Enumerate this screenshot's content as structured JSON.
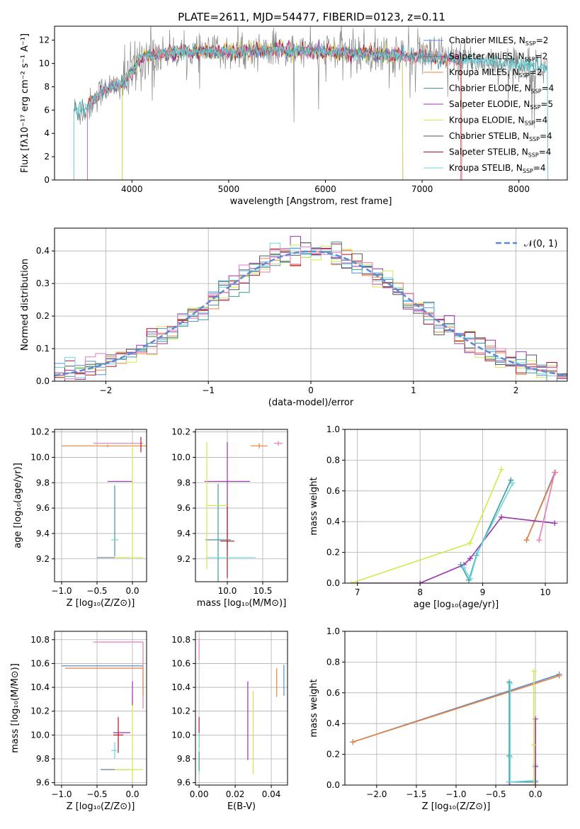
{
  "title": "PLATE=2611, MJD=54477, FIBERID=0123, z=0.11",
  "colors": {
    "Chabrier MILES": "#5b8bd6",
    "Salpeter MILES": "#6b7b8c",
    "Kroupa MILES": "#e8843c",
    "Chabrier ELODIE": "#3d9a9a",
    "Salpeter ELODIE": "#9b30b0",
    "Kroupa ELODIE": "#d4e84a",
    "Chabrier STELIB": "#555555",
    "Salpeter STELIB": "#b0151f",
    "Kroupa STELIB": "#6fd6e0",
    "normal": "#5b8bd6",
    "pink": "#e87ab8"
  },
  "legend_spectrum": [
    {
      "label": "Chabrier MILES, N",
      "sub": "SSP",
      "val": "=2",
      "color": "#5b8bd6"
    },
    {
      "label": "Salpeter MILES, N",
      "sub": "SSP",
      "val": "=2",
      "color": "#6b7b8c"
    },
    {
      "label": "Kroupa MILES, N",
      "sub": "SSP",
      "val": "=2",
      "color": "#e8843c"
    },
    {
      "label": "Chabrier ELODIE, N",
      "sub": "SSP",
      "val": "=4",
      "color": "#3d9a9a"
    },
    {
      "label": "Salpeter ELODIE, N",
      "sub": "SSP",
      "val": "=5",
      "color": "#9b30b0"
    },
    {
      "label": "Kroupa ELODIE, N",
      "sub": "SSP",
      "val": "=4",
      "color": "#d4e84a"
    },
    {
      "label": "Chabrier STELIB, N",
      "sub": "SSP",
      "val": "=4",
      "color": "#555555"
    },
    {
      "label": "Salpeter STELIB, N",
      "sub": "SSP",
      "val": "=4",
      "color": "#b0151f"
    },
    {
      "label": "Kroupa STELIB, N",
      "sub": "SSP",
      "val": "=4",
      "color": "#6fd6e0"
    }
  ],
  "chart_data": [
    {
      "type": "line",
      "id": "spectrum",
      "xlabel": "wavelength [Angstrom, rest frame]",
      "ylabel": "Flux [fλ10⁻¹⁷ erg cm⁻² s⁻¹ A⁻¹]",
      "xlim": [
        3200,
        8500
      ],
      "ylim": [
        0,
        13.2
      ],
      "xticks": [
        4000,
        5000,
        6000,
        7000,
        8000
      ],
      "yticks": [
        0,
        2,
        4,
        6,
        8,
        10,
        12
      ],
      "continuum": {
        "x": [
          3400,
          3500,
          3600,
          3700,
          3800,
          3900,
          4000,
          4100,
          4300,
          4500,
          5000,
          5500,
          6000,
          6500,
          7000,
          7500,
          8000,
          8300
        ],
        "y": [
          6.0,
          5.8,
          6.8,
          7.8,
          8.0,
          8.2,
          9.2,
          10.6,
          10.8,
          11.0,
          11.0,
          11.2,
          11.0,
          10.8,
          10.6,
          10.3,
          9.9,
          9.6
        ]
      },
      "data_range": [
        3400,
        8300
      ],
      "model_range_miles": [
        3540,
        7410
      ],
      "model_range_elodie": [
        3900,
        6800
      ]
    },
    {
      "type": "line",
      "id": "residual-hist",
      "xlabel": "(data-model)/error",
      "ylabel": "Normed distribution",
      "xlim": [
        -2.5,
        2.5
      ],
      "ylim": [
        0,
        0.47
      ],
      "xticks": [
        -2,
        -1,
        0,
        1,
        2
      ],
      "yticks": [
        0.0,
        0.1,
        0.2,
        0.3,
        0.4
      ],
      "legend": "𝒩(0, 1)",
      "bin_width": 0.1
    },
    {
      "type": "scatter",
      "id": "age-vs-Z",
      "xlabel": "Z [log₁₀(Z/Z⊙)]",
      "ylabel": "age  [log₁₀(age/yr)]",
      "xlim": [
        -1.1,
        0.2
      ],
      "ylim": [
        9.02,
        10.22
      ],
      "xticks": [
        -1.0,
        -0.5,
        0.0
      ],
      "yticks": [
        9.2,
        9.4,
        9.6,
        9.8,
        10.0,
        10.2
      ],
      "points": [
        {
          "x": -0.35,
          "xerr": [
            0.65,
            0.55
          ],
          "y": 10.09,
          "yerr": [
            0.01,
            0.01
          ],
          "color": "#e8843c"
        },
        {
          "x": -0.2,
          "xerr": [
            0.35,
            0.35
          ],
          "y": 10.11,
          "yerr": [
            0,
            0
          ],
          "color": "#e87ab8"
        },
        {
          "x": 0.12,
          "xerr": [
            0,
            0
          ],
          "y": 10.1,
          "yerr": [
            0.06,
            0.06
          ],
          "color": "#b0151f"
        },
        {
          "x": -0.1,
          "xerr": [
            0.25,
            0.1
          ],
          "y": 9.81,
          "yerr": [
            0,
            0
          ],
          "color": "#9b30b0"
        },
        {
          "x": -0.25,
          "xerr": [
            0,
            0
          ],
          "y": 9.5,
          "yerr": [
            0.28,
            0.28
          ],
          "color": "#3d9a9a"
        },
        {
          "x": -0.25,
          "xerr": [
            0.05,
            0.05
          ],
          "y": 9.35,
          "yerr": [
            0,
            0
          ],
          "color": "#6fd6e0"
        },
        {
          "x": -0.25,
          "xerr": [
            0.25,
            0.2
          ],
          "y": 9.21,
          "yerr": [
            0,
            0
          ],
          "color": "#6b7b8c"
        },
        {
          "x": 0.0,
          "xerr": [
            0.25,
            0.15
          ],
          "y": 9.21,
          "yerr": [
            0,
            0
          ],
          "color": "#d4e84a"
        },
        {
          "x": 0.0,
          "xerr": [
            0,
            0
          ],
          "y": 9.65,
          "yerr": [
            0.45,
            0.45
          ],
          "color": "#d4e84a"
        }
      ]
    },
    {
      "type": "scatter",
      "id": "age-vs-mass",
      "xlabel": "mass [log₁₀(M/M⊙)]",
      "ylabel": "",
      "xlim": [
        9.55,
        10.85
      ],
      "ylim": [
        9.02,
        10.22
      ],
      "xticks": [
        10.0,
        10.5
      ],
      "yticks": [
        9.2,
        9.4,
        9.6,
        9.8,
        10.0,
        10.2
      ],
      "points": [
        {
          "x": 10.45,
          "xerr": [
            0.12,
            0.12
          ],
          "y": 10.09,
          "yerr": [
            0.02,
            0.02
          ],
          "color": "#e8843c"
        },
        {
          "x": 10.72,
          "xerr": [
            0.06,
            0.06
          ],
          "y": 10.11,
          "yerr": [
            0.02,
            0.02
          ],
          "color": "#e87ab8"
        },
        {
          "x": 10.0,
          "xerr": [
            0,
            0
          ],
          "y": 9.7,
          "yerr": [
            0.42,
            0.42
          ],
          "color": "#9b30b0"
        },
        {
          "x": 10.0,
          "xerr": [
            0.32,
            0.32
          ],
          "y": 9.81,
          "yerr": [
            0,
            0
          ],
          "color": "#9b30b0"
        },
        {
          "x": 10.0,
          "xerr": [
            0.1,
            0.1
          ],
          "y": 9.34,
          "yerr": [
            0.29,
            0.29
          ],
          "color": "#b0151f"
        },
        {
          "x": 9.87,
          "xerr": [
            0.18,
            0.18
          ],
          "y": 9.35,
          "yerr": [
            0.44,
            0.44
          ],
          "color": "#3d9a9a"
        },
        {
          "x": 9.75,
          "xerr": [
            0.05,
            0.65
          ],
          "y": 9.21,
          "yerr": [
            0,
            0
          ],
          "color": "#6fd6e0"
        },
        {
          "x": 9.71,
          "xerr": [
            0,
            0.3
          ],
          "y": 9.62,
          "yerr": [
            0.5,
            0.5
          ],
          "color": "#d4e84a"
        }
      ]
    },
    {
      "type": "line",
      "id": "weight-vs-age",
      "xlabel": "age  [log₁₀(age/yr)]",
      "ylabel": "mass weight",
      "xlim": [
        6.8,
        10.35
      ],
      "ylim": [
        0,
        1.0
      ],
      "xticks": [
        7,
        8,
        9,
        10
      ],
      "yticks": [
        0.0,
        0.2,
        0.4,
        0.6,
        0.8,
        1.0
      ],
      "series": [
        {
          "color": "#5b8bd6",
          "x": [
            9.7,
            10.15
          ],
          "y": [
            0.28,
            0.72
          ]
        },
        {
          "color": "#e8843c",
          "x": [
            9.7,
            10.16
          ],
          "y": [
            0.28,
            0.72
          ]
        },
        {
          "color": "#9b30b0",
          "x": [
            7.0,
            8.0,
            8.7,
            8.8,
            9.3,
            10.15
          ],
          "y": [
            0.0,
            0.0,
            0.12,
            0.16,
            0.43,
            0.39
          ]
        },
        {
          "color": "#d4e84a",
          "x": [
            6.9,
            8.8,
            9.3
          ],
          "y": [
            0.0,
            0.26,
            0.74
          ]
        },
        {
          "color": "#3d9a9a",
          "x": [
            8.65,
            8.78,
            8.9,
            9.45
          ],
          "y": [
            0.12,
            0.02,
            0.18,
            0.67
          ]
        },
        {
          "color": "#6fd6e0",
          "x": [
            8.7,
            8.8,
            8.92,
            9.48
          ],
          "y": [
            0.1,
            0.03,
            0.2,
            0.65
          ]
        },
        {
          "color": "#e87ab8",
          "x": [
            9.9,
            10.15
          ],
          "y": [
            0.28,
            0.72
          ]
        }
      ]
    },
    {
      "type": "scatter",
      "id": "mass-vs-Z",
      "xlabel": "Z [log₁₀(Z/Z⊙)]",
      "ylabel": "mass [log₁₀(M/M⊙)]",
      "xlim": [
        -1.1,
        0.2
      ],
      "ylim": [
        9.58,
        10.87
      ],
      "xticks": [
        -1.0,
        -0.5,
        0.0
      ],
      "yticks": [
        9.6,
        9.8,
        10.0,
        10.2,
        10.4,
        10.6,
        10.8
      ],
      "points": [
        {
          "x": -0.2,
          "xerr": [
            0.35,
            0.35
          ],
          "y": 10.78,
          "yerr": [
            0,
            0
          ],
          "color": "#e87ab8"
        },
        {
          "x": -0.4,
          "xerr": [
            0.6,
            0.55
          ],
          "y": 10.58,
          "yerr": [
            0,
            0
          ],
          "color": "#5b8bd6"
        },
        {
          "x": -0.4,
          "xerr": [
            0.55,
            0.55
          ],
          "y": 10.56,
          "yerr": [
            0,
            0
          ],
          "color": "#e8843c"
        },
        {
          "x": 0.15,
          "xerr": [
            0,
            0
          ],
          "y": 10.5,
          "yerr": [
            0.28,
            0.28
          ],
          "color": "#e87ab8"
        },
        {
          "x": 0.15,
          "xerr": [
            0,
            0
          ],
          "y": 10.45,
          "yerr": [
            0.12,
            0.12
          ],
          "color": "#e8843c"
        },
        {
          "x": -0.15,
          "xerr": [
            0.12,
            0.12
          ],
          "y": 10.02,
          "yerr": [
            0,
            0
          ],
          "color": "#9b30b0"
        },
        {
          "x": -0.2,
          "xerr": [
            0.07,
            0.07
          ],
          "y": 10.0,
          "yerr": [
            0.15,
            0.15
          ],
          "color": "#b0151f"
        },
        {
          "x": -0.25,
          "xerr": [
            0.05,
            0.05
          ],
          "y": 9.87,
          "yerr": [
            0.07,
            0.07
          ],
          "color": "#6fd6e0"
        },
        {
          "x": -0.25,
          "xerr": [
            0.2,
            0.2
          ],
          "y": 9.71,
          "yerr": [
            0,
            0
          ],
          "color": "#6b7b8c"
        },
        {
          "x": 0.0,
          "xerr": [
            0.25,
            0.15
          ],
          "y": 9.71,
          "yerr": [
            0,
            0
          ],
          "color": "#d4e84a"
        },
        {
          "x": 0.0,
          "xerr": [
            0,
            0
          ],
          "y": 9.99,
          "yerr": [
            0.37,
            0.37
          ],
          "color": "#d4e84a"
        },
        {
          "x": 0.0,
          "xerr": [
            0,
            0
          ],
          "y": 10.35,
          "yerr": [
            0.1,
            0.1
          ],
          "color": "#9b30b0"
        }
      ]
    },
    {
      "type": "scatter",
      "id": "mass-vs-ebv",
      "xlabel": "E(B-V)",
      "ylabel": "",
      "xlim": [
        -0.002,
        0.049
      ],
      "ylim": [
        9.58,
        10.87
      ],
      "xticks": [
        0.0,
        0.02,
        0.04
      ],
      "yticks": [
        9.6,
        9.8,
        10.0,
        10.2,
        10.4,
        10.6,
        10.8
      ],
      "points": [
        {
          "x": 0.0,
          "y": 10.72,
          "yerr": [
            0.09,
            0.09
          ],
          "color": "#e87ab8"
        },
        {
          "x": 0.0,
          "y": 10.02,
          "yerr": [
            0.13,
            0.13
          ],
          "color": "#b0151f"
        },
        {
          "x": 0.0,
          "y": 9.85,
          "yerr": [
            0.17,
            0.17
          ],
          "color": "#6fd6e0"
        },
        {
          "x": 0.0,
          "y": 9.78,
          "yerr": [
            0.08,
            0.08
          ],
          "color": "#3d9a9a"
        },
        {
          "x": 0.027,
          "y": 10.12,
          "yerr": [
            0.33,
            0.33
          ],
          "color": "#9b30b0"
        },
        {
          "x": 0.03,
          "y": 10.02,
          "yerr": [
            0.35,
            0.35
          ],
          "color": "#d4e84a"
        },
        {
          "x": 0.043,
          "y": 10.44,
          "yerr": [
            0.12,
            0.12
          ],
          "color": "#e8843c"
        },
        {
          "x": 0.047,
          "y": 10.46,
          "yerr": [
            0.13,
            0.13
          ],
          "color": "#5b8bd6"
        }
      ]
    },
    {
      "type": "line",
      "id": "weight-vs-Z",
      "xlabel": "Z [log₁₀(Z/Z⊙)]",
      "ylabel": "mass weight",
      "xlim": [
        -2.4,
        0.4
      ],
      "ylim": [
        0,
        1.0
      ],
      "xticks": [
        -2.0,
        -1.5,
        -1.0,
        -0.5,
        0.0
      ],
      "yticks": [
        0.0,
        0.2,
        0.4,
        0.6,
        0.8,
        1.0
      ],
      "series": [
        {
          "color": "#5b8bd6",
          "x": [
            -2.3,
            0.3
          ],
          "y": [
            0.28,
            0.72
          ]
        },
        {
          "color": "#e8843c",
          "x": [
            -2.3,
            0.3
          ],
          "y": [
            0.28,
            0.71
          ]
        },
        {
          "color": "#3d9a9a",
          "x": [
            -0.33,
            -0.33,
            -0.33,
            0.0,
            0.0
          ],
          "y": [
            0.67,
            0.19,
            0.02,
            0.02,
            0.12
          ]
        },
        {
          "color": "#6fd6e0",
          "x": [
            -0.32,
            -0.32,
            -0.32,
            0.0,
            0.0
          ],
          "y": [
            0.66,
            0.18,
            0.02,
            0.03,
            0.13
          ]
        },
        {
          "color": "#9b30b0",
          "x": [
            -0.33,
            0.0,
            0.0,
            0.0
          ],
          "y": [
            0.0,
            0.0,
            0.43,
            0.12
          ]
        },
        {
          "color": "#d4e84a",
          "x": [
            -0.02,
            -0.02,
            -0.02
          ],
          "y": [
            0.0,
            0.26,
            0.74
          ]
        }
      ]
    }
  ]
}
